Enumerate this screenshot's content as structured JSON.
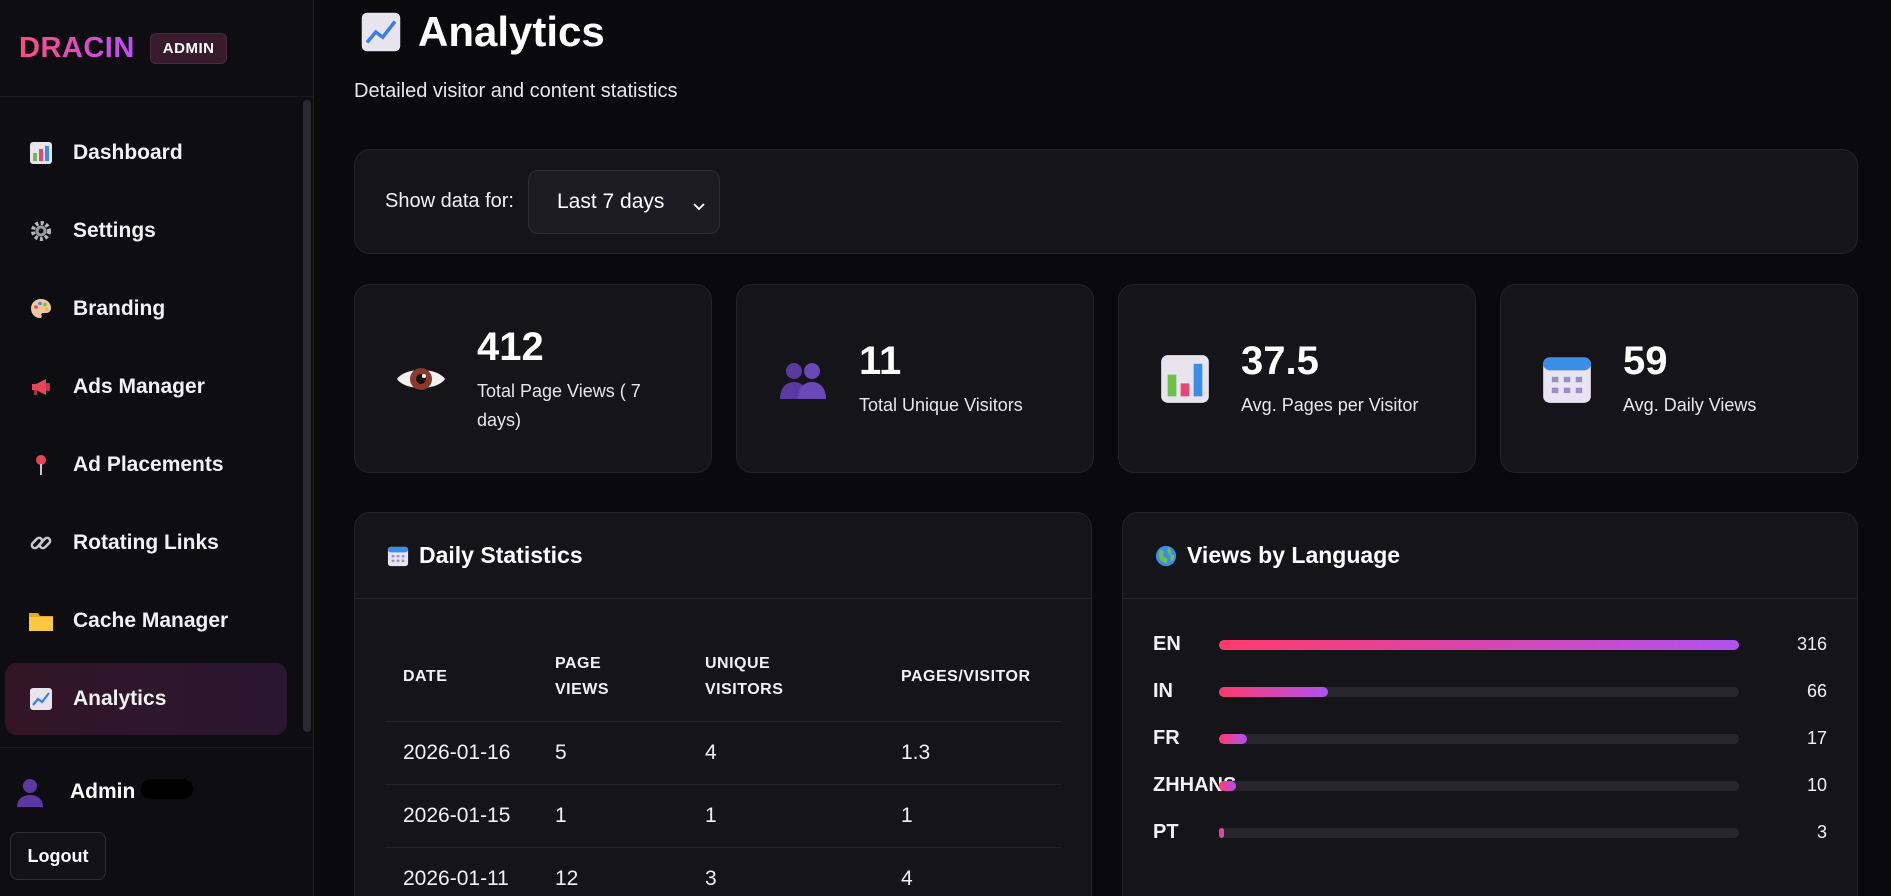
{
  "brand": {
    "name": "DRACIN",
    "badge": "ADMIN"
  },
  "sidebar": {
    "items": [
      {
        "label": "Dashboard",
        "icon": "bar-chart-icon",
        "active": false
      },
      {
        "label": "Settings",
        "icon": "gear-icon",
        "active": false
      },
      {
        "label": "Branding",
        "icon": "palette-icon",
        "active": false
      },
      {
        "label": "Ads Manager",
        "icon": "megaphone-icon",
        "active": false
      },
      {
        "label": "Ad Placements",
        "icon": "pin-icon",
        "active": false
      },
      {
        "label": "Rotating Links",
        "icon": "link-icon",
        "active": false
      },
      {
        "label": "Cache Manager",
        "icon": "folder-icon",
        "active": false
      },
      {
        "label": "Analytics",
        "icon": "trend-chart-icon",
        "active": true
      }
    ],
    "user": {
      "name": "Admin"
    },
    "logout_label": "Logout"
  },
  "page": {
    "title": "Analytics",
    "subtitle": "Detailed visitor and content statistics"
  },
  "filter": {
    "label": "Show data for:",
    "selected": "Last 7 days"
  },
  "stats": [
    {
      "value": "412",
      "label": "Total Page Views ( 7 days)",
      "icon": "eye-icon"
    },
    {
      "value": "11",
      "label": "Total Unique Visitors",
      "icon": "users-icon"
    },
    {
      "value": "37.5",
      "label": "Avg. Pages per Visitor",
      "icon": "bar-chart-icon"
    },
    {
      "value": "59",
      "label": "Avg. Daily Views",
      "icon": "calendar-icon"
    }
  ],
  "daily": {
    "title": "Daily Statistics",
    "columns": [
      "DATE",
      "PAGE VIEWS",
      "UNIQUE VISITORS",
      "PAGES/VISITOR"
    ],
    "rows": [
      [
        "2026-01-16",
        "5",
        "4",
        "1.3"
      ],
      [
        "2026-01-15",
        "1",
        "1",
        "1"
      ],
      [
        "2026-01-11",
        "12",
        "3",
        "4"
      ]
    ]
  },
  "languages": {
    "title": "Views by Language",
    "items": [
      {
        "code": "EN",
        "count": "316",
        "share": 1.0
      },
      {
        "code": "IN",
        "count": "66",
        "share": 0.209
      },
      {
        "code": "FR",
        "count": "17",
        "share": 0.054
      },
      {
        "code": "ZHHANS",
        "count": "10",
        "share": 0.032
      },
      {
        "code": "PT",
        "count": "3",
        "share": 0.0095
      }
    ]
  },
  "colors": {
    "accent_pink": "#ff3a6b",
    "accent_purple": "#b052f0",
    "background": "#0a0a0d",
    "card": "#141419"
  }
}
